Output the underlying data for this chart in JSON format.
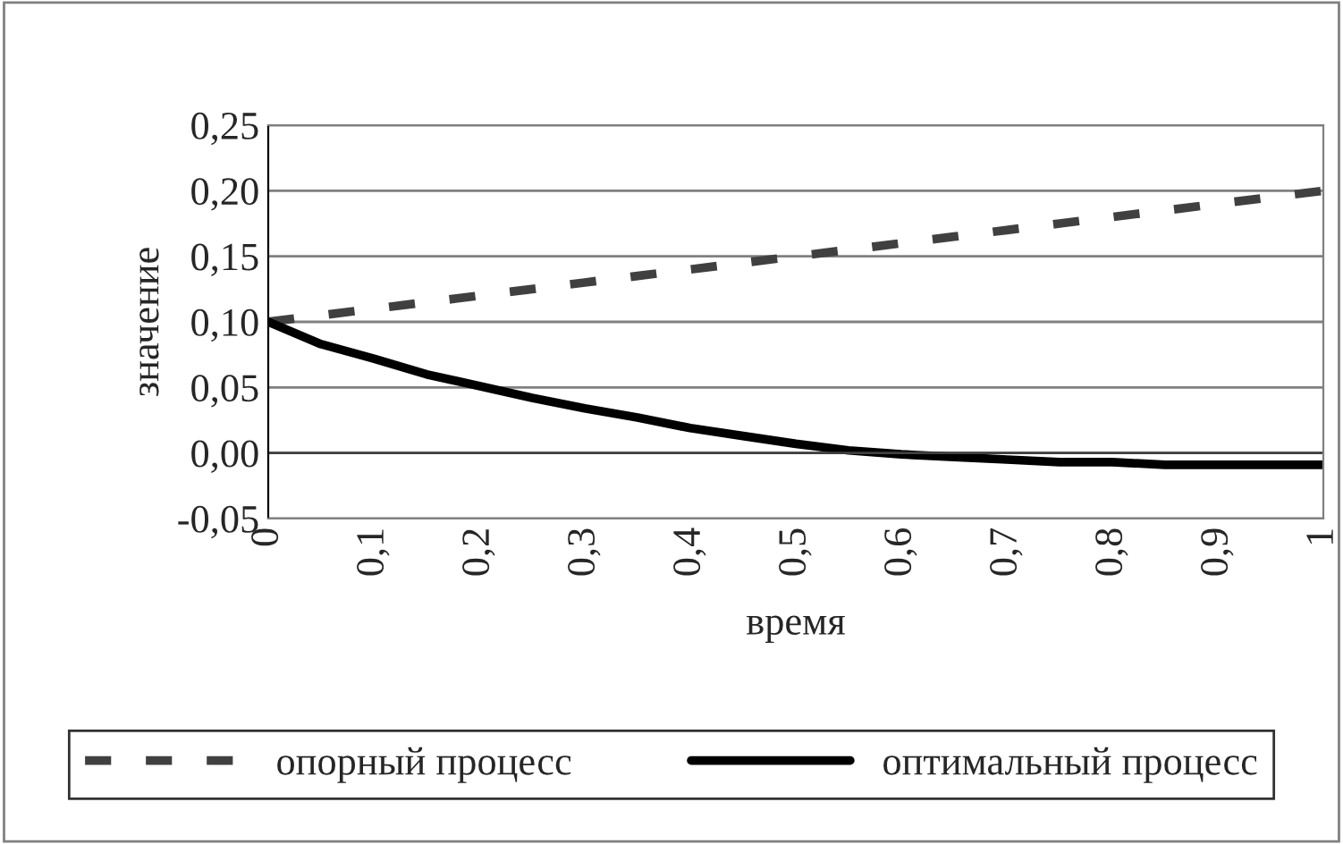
{
  "chart_data": {
    "type": "line",
    "xlabel": "время",
    "ylabel": "значение",
    "xlim": [
      0,
      1
    ],
    "ylim": [
      -0.05,
      0.25
    ],
    "xticks": [
      {
        "value": 0,
        "label": "0"
      },
      {
        "value": 0.1,
        "label": "0,1"
      },
      {
        "value": 0.2,
        "label": "0,2"
      },
      {
        "value": 0.3,
        "label": "0,3"
      },
      {
        "value": 0.4,
        "label": "0,4"
      },
      {
        "value": 0.5,
        "label": "0,5"
      },
      {
        "value": 0.6,
        "label": "0,6"
      },
      {
        "value": 0.7,
        "label": "0,7"
      },
      {
        "value": 0.8,
        "label": "0,8"
      },
      {
        "value": 0.9,
        "label": "0,9"
      },
      {
        "value": 1,
        "label": "1"
      }
    ],
    "yticks": [
      {
        "value": -0.05,
        "label": "-0,05"
      },
      {
        "value": 0,
        "label": "0,00"
      },
      {
        "value": 0.05,
        "label": "0,05"
      },
      {
        "value": 0.1,
        "label": "0,10"
      },
      {
        "value": 0.15,
        "label": "0,15"
      },
      {
        "value": 0.2,
        "label": "0,20"
      },
      {
        "value": 0.25,
        "label": "0,25"
      }
    ],
    "grid": "y",
    "legend": "bottom",
    "marker": "none",
    "x": [
      0,
      0.05,
      0.1,
      0.15,
      0.2,
      0.25,
      0.3,
      0.35,
      0.4,
      0.45,
      0.5,
      0.55,
      0.6,
      0.65,
      0.7,
      0.75,
      0.8,
      0.85,
      0.9,
      0.95,
      1
    ],
    "series": [
      {
        "name": "опорный процесс",
        "color": "#404040",
        "line_style": "dashed",
        "values": [
          0.1,
          0.105,
          0.11,
          0.115,
          0.12,
          0.125,
          0.13,
          0.135,
          0.14,
          0.145,
          0.15,
          0.155,
          0.16,
          0.165,
          0.17,
          0.175,
          0.18,
          0.185,
          0.19,
          0.195,
          0.2
        ]
      },
      {
        "name": "оптимальный процесс",
        "color": "#000000",
        "line_style": "solid",
        "values": [
          0.1,
          0.083,
          0.072,
          0.06,
          0.051,
          0.042,
          0.034,
          0.027,
          0.019,
          0.013,
          0.007,
          0.002,
          -0.001,
          -0.003,
          -0.005,
          -0.007,
          -0.007,
          -0.009,
          -0.009,
          -0.009,
          -0.009
        ]
      }
    ]
  }
}
